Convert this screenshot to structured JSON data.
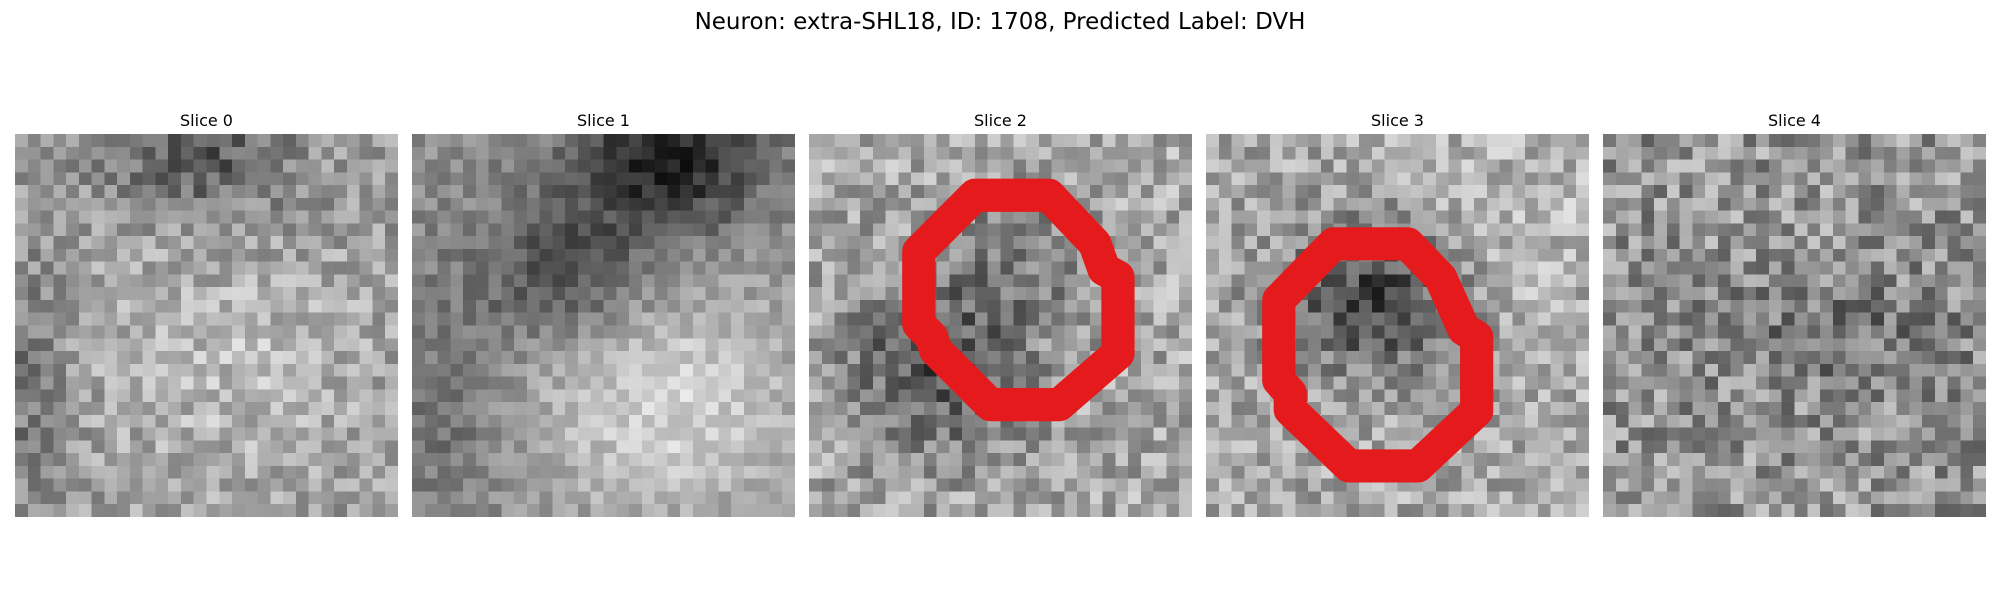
{
  "figure": {
    "title": "Neuron: extra-SHL18, ID: 1708, Predicted Label: DVH"
  },
  "panels": [
    {
      "title": "Slice 0",
      "has_contour": false
    },
    {
      "title": "Slice 1",
      "has_contour": false
    },
    {
      "title": "Slice 2",
      "has_contour": true
    },
    {
      "title": "Slice 3",
      "has_contour": true
    },
    {
      "title": "Slice 4",
      "has_contour": false
    }
  ],
  "colors": {
    "contour": "#e41a1c",
    "colormap": "gray"
  }
}
